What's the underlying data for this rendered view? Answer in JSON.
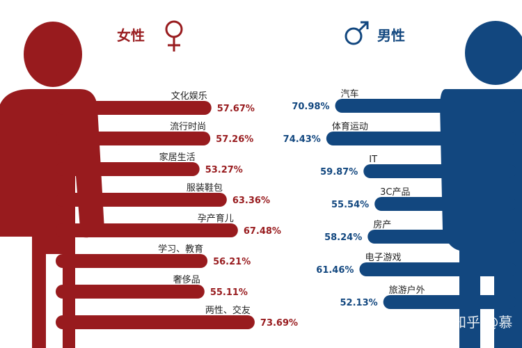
{
  "colors": {
    "female": "#981b1e",
    "male": "#12477f"
  },
  "chart_data": [
    {
      "type": "bar",
      "title": "女性",
      "categories": [
        "文化娱乐",
        "流行时尚",
        "家居生活",
        "服装鞋包",
        "孕产育儿",
        "学习、教育",
        "奢侈品",
        "两性、交友"
      ],
      "values": [
        57.67,
        57.26,
        53.27,
        63.36,
        67.48,
        56.21,
        55.11,
        73.69
      ],
      "labels": [
        "57.67%",
        "57.26%",
        "53.27%",
        "63.36%",
        "67.48%",
        "56.21%",
        "55.11%",
        "73.69%"
      ]
    },
    {
      "type": "bar",
      "title": "男性",
      "categories": [
        "汽车",
        "体育运动",
        "IT",
        "3C产品",
        "房产",
        "电子游戏",
        "旅游户外"
      ],
      "values": [
        70.98,
        74.43,
        59.87,
        55.54,
        58.24,
        61.46,
        52.13
      ],
      "labels": [
        "70.98%",
        "74.43%",
        "59.87%",
        "55.54%",
        "58.24%",
        "61.46%",
        "52.13%"
      ]
    }
  ],
  "watermark": "知乎 @慕"
}
